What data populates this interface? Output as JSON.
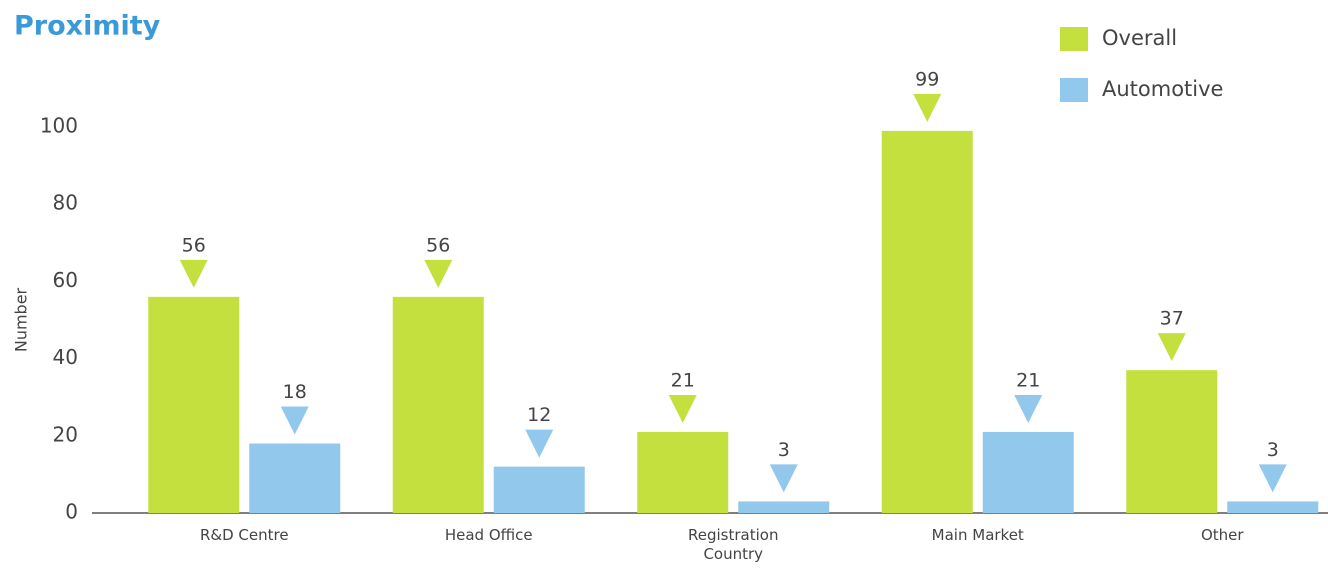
{
  "chart_data": {
    "type": "bar",
    "title": "Proximity",
    "y_label": "Number",
    "categories": [
      "R&D Centre",
      "Head Office",
      "Registration Country",
      "Main Market",
      "Other"
    ],
    "series": [
      {
        "name": "Overall",
        "color": "#c3e03f",
        "values": [
          56,
          56,
          21,
          99,
          37
        ]
      },
      {
        "name": "Automotive",
        "color": "#92c8ec",
        "values": [
          18,
          12,
          3,
          21,
          3
        ]
      }
    ],
    "ylim": [
      0,
      100
    ],
    "yticks": [
      0,
      20,
      40,
      60,
      80,
      100
    ],
    "grid": false,
    "legend": "top-right"
  }
}
